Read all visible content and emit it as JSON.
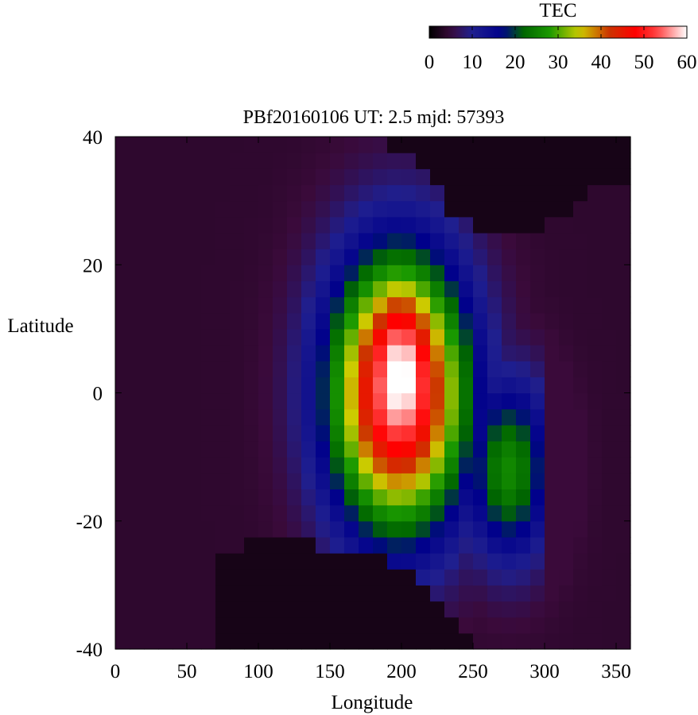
{
  "chart_data": {
    "type": "heatmap",
    "title": "PBf20160106  UT: 2.5  mjd: 57393",
    "xlabel": "Longitude",
    "ylabel": "Latitude",
    "xlim": [
      0,
      360
    ],
    "ylim": [
      -40,
      40
    ],
    "xticks": [
      "0",
      "50",
      "100",
      "150",
      "200",
      "250",
      "300",
      "350"
    ],
    "xtick_values": [
      0,
      50,
      100,
      150,
      200,
      250,
      300,
      350
    ],
    "yticks": [
      "40",
      "20",
      "0",
      "-20",
      "-40"
    ],
    "ytick_values": [
      40,
      20,
      0,
      -20,
      -40
    ],
    "grid": false,
    "colorbar": {
      "label": "TEC",
      "min": 0,
      "max": 60,
      "ticks": [
        "0",
        "10",
        "20",
        "30",
        "40",
        "50",
        "60"
      ],
      "tick_values": [
        0,
        10,
        20,
        30,
        40,
        50,
        60
      ],
      "placement": "top-right",
      "colormap": [
        "#000000",
        "#3a0a3a",
        "#1f1f8f",
        "#00008b",
        "#006600",
        "#1a9900",
        "#cccc00",
        "#cc3300",
        "#ff0000",
        "#ff4040",
        "#ffffff"
      ],
      "colormap_stops": [
        0,
        5,
        10,
        17,
        22,
        28,
        35,
        42,
        48,
        53,
        60
      ]
    },
    "grid_step_lon": 10,
    "grid_step_lat": 2.5,
    "features": {
      "peak": {
        "lon": 200,
        "lat": 6,
        "tec": 57
      },
      "night_south_boundary": [
        [
          75,
          -25
        ],
        [
          100,
          -23
        ],
        [
          130,
          -23
        ],
        [
          150,
          -24
        ],
        [
          170,
          -25
        ],
        [
          190,
          -26
        ],
        [
          210,
          -28
        ],
        [
          220,
          -30
        ],
        [
          230,
          -33
        ],
        [
          240,
          -37
        ],
        [
          250,
          -40
        ]
      ],
      "night_north_boundary": [
        [
          180,
          40
        ],
        [
          190,
          39
        ],
        [
          200,
          37
        ],
        [
          210,
          36
        ],
        [
          220,
          34
        ],
        [
          230,
          30
        ],
        [
          240,
          27
        ],
        [
          260,
          24
        ],
        [
          280,
          24
        ],
        [
          300,
          26
        ],
        [
          320,
          29
        ],
        [
          340,
          32
        ],
        [
          360,
          34
        ]
      ]
    }
  }
}
